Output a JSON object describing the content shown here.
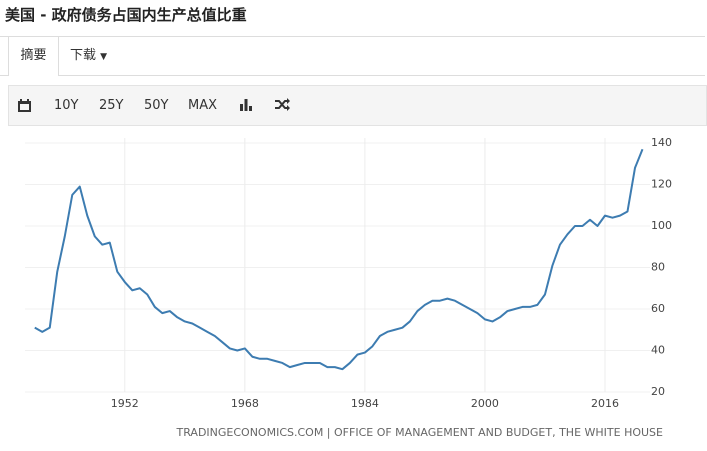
{
  "page_title": "美国 - 政府债务占国内生产总值比重",
  "tabs": [
    "摘要",
    "下载"
  ],
  "toolbar": [
    "10Y",
    "25Y",
    "50Y",
    "MAX"
  ],
  "chart_data": {
    "type": "line",
    "source": "TRADINGECONOMICS.COM | OFFICE OF MANAGEMENT AND BUDGET, THE WHITE HOUSE",
    "x": [
      1940,
      1941,
      1942,
      1943,
      1944,
      1945,
      1946,
      1947,
      1948,
      1949,
      1950,
      1951,
      1952,
      1953,
      1954,
      1955,
      1956,
      1957,
      1958,
      1959,
      1960,
      1961,
      1962,
      1963,
      1964,
      1965,
      1966,
      1967,
      1968,
      1969,
      1970,
      1971,
      1972,
      1973,
      1974,
      1975,
      1976,
      1977,
      1978,
      1979,
      1980,
      1981,
      1982,
      1983,
      1984,
      1985,
      1986,
      1987,
      1988,
      1989,
      1990,
      1991,
      1992,
      1993,
      1994,
      1995,
      1996,
      1997,
      1998,
      1999,
      2000,
      2001,
      2002,
      2003,
      2004,
      2005,
      2006,
      2007,
      2008,
      2009,
      2010,
      2011,
      2012,
      2013,
      2014,
      2015,
      2016,
      2017,
      2018,
      2019,
      2020,
      2021
    ],
    "series": [
      {
        "color": "#3d7cb1",
        "values": [
          51,
          49,
          51,
          78,
          95,
          115,
          119,
          105,
          95,
          91,
          92,
          78,
          73,
          69,
          70,
          67,
          61,
          58,
          59,
          56,
          54,
          53,
          51,
          49,
          47,
          44,
          41,
          40,
          41,
          37,
          36,
          36,
          35,
          34,
          32,
          33,
          34,
          34,
          34,
          32,
          32,
          31,
          34,
          38,
          39,
          42,
          47,
          49,
          50,
          51,
          54,
          59,
          62,
          64,
          64,
          65,
          64,
          62,
          60,
          58,
          55,
          54,
          56,
          59,
          60,
          61,
          61,
          62,
          67,
          81,
          91,
          96,
          100,
          100,
          103,
          100,
          105,
          104,
          105,
          107,
          128,
          137
        ]
      }
    ],
    "xlim": [
      1938.7,
      2022
    ],
    "xticks": [
      1952,
      1968,
      1984,
      2000,
      2016
    ],
    "ylim": [
      20,
      140
    ],
    "yticks": [
      20,
      40,
      60,
      80,
      100,
      120,
      140
    ],
    "grid": true
  }
}
